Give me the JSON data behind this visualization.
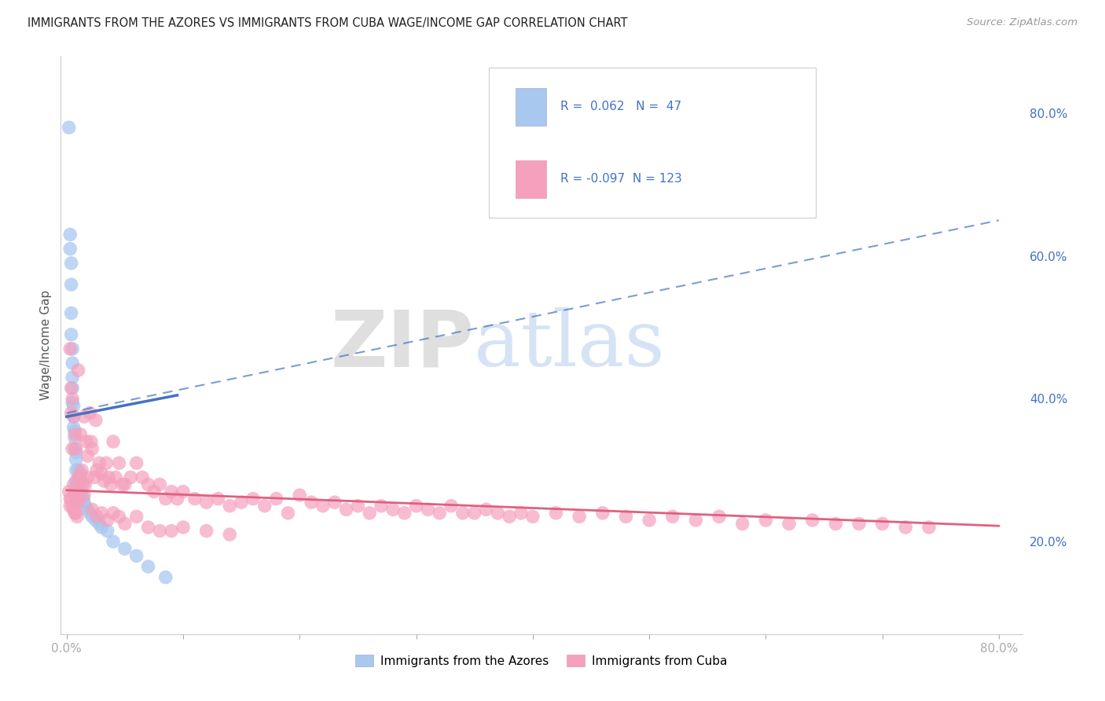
{
  "title": "IMMIGRANTS FROM THE AZORES VS IMMIGRANTS FROM CUBA WAGE/INCOME GAP CORRELATION CHART",
  "source": "Source: ZipAtlas.com",
  "ylabel": "Wage/Income Gap",
  "xlim": [
    -0.005,
    0.82
  ],
  "ylim": [
    0.07,
    0.88
  ],
  "azores_R": 0.062,
  "azores_N": 47,
  "cuba_R": -0.097,
  "cuba_N": 123,
  "azores_color": "#a8c8f0",
  "cuba_color": "#f5a0bc",
  "azores_line_color": "#4472c4",
  "cuba_line_color": "#e06080",
  "background_color": "#ffffff",
  "grid_color": "#d0d0d0",
  "legend_label_azores": "Immigrants from the Azores",
  "legend_label_cuba": "Immigrants from Cuba",
  "right_yticks": [
    0.2,
    0.4,
    0.6,
    0.8
  ],
  "right_yticklabels": [
    "20.0%",
    "40.0%",
    "60.0%",
    "80.0%"
  ],
  "xtick_positions": [
    0.0,
    0.1,
    0.2,
    0.3,
    0.4,
    0.5,
    0.6,
    0.7,
    0.8
  ],
  "xtick_labels": [
    "0.0%",
    "",
    "",
    "",
    "",
    "",
    "",
    "",
    "80.0%"
  ],
  "azores_x": [
    0.002,
    0.003,
    0.003,
    0.004,
    0.004,
    0.004,
    0.004,
    0.005,
    0.005,
    0.005,
    0.005,
    0.005,
    0.006,
    0.006,
    0.006,
    0.007,
    0.007,
    0.007,
    0.008,
    0.008,
    0.008,
    0.008,
    0.009,
    0.009,
    0.009,
    0.01,
    0.01,
    0.011,
    0.011,
    0.012,
    0.012,
    0.013,
    0.014,
    0.015,
    0.016,
    0.018,
    0.02,
    0.022,
    0.025,
    0.028,
    0.03,
    0.035,
    0.04,
    0.05,
    0.06,
    0.07,
    0.085
  ],
  "azores_y": [
    0.78,
    0.63,
    0.61,
    0.59,
    0.56,
    0.52,
    0.49,
    0.47,
    0.45,
    0.43,
    0.415,
    0.395,
    0.39,
    0.375,
    0.36,
    0.355,
    0.345,
    0.33,
    0.325,
    0.315,
    0.3,
    0.285,
    0.28,
    0.265,
    0.255,
    0.3,
    0.285,
    0.27,
    0.26,
    0.295,
    0.28,
    0.265,
    0.26,
    0.255,
    0.25,
    0.245,
    0.24,
    0.235,
    0.23,
    0.225,
    0.22,
    0.215,
    0.2,
    0.19,
    0.18,
    0.165,
    0.15
  ],
  "cuba_x": [
    0.002,
    0.003,
    0.003,
    0.004,
    0.004,
    0.005,
    0.005,
    0.006,
    0.006,
    0.007,
    0.007,
    0.008,
    0.008,
    0.009,
    0.009,
    0.01,
    0.01,
    0.011,
    0.012,
    0.013,
    0.014,
    0.015,
    0.016,
    0.017,
    0.018,
    0.02,
    0.021,
    0.022,
    0.024,
    0.025,
    0.026,
    0.028,
    0.03,
    0.032,
    0.034,
    0.036,
    0.038,
    0.04,
    0.042,
    0.045,
    0.048,
    0.05,
    0.055,
    0.06,
    0.065,
    0.07,
    0.075,
    0.08,
    0.085,
    0.09,
    0.095,
    0.1,
    0.11,
    0.12,
    0.13,
    0.14,
    0.15,
    0.16,
    0.17,
    0.18,
    0.19,
    0.2,
    0.21,
    0.22,
    0.23,
    0.24,
    0.25,
    0.26,
    0.27,
    0.28,
    0.29,
    0.3,
    0.31,
    0.32,
    0.33,
    0.34,
    0.35,
    0.36,
    0.37,
    0.38,
    0.39,
    0.4,
    0.42,
    0.44,
    0.46,
    0.48,
    0.5,
    0.52,
    0.54,
    0.56,
    0.58,
    0.6,
    0.62,
    0.64,
    0.66,
    0.68,
    0.7,
    0.72,
    0.74,
    0.003,
    0.004,
    0.005,
    0.006,
    0.007,
    0.008,
    0.01,
    0.012,
    0.015,
    0.018,
    0.022,
    0.026,
    0.03,
    0.035,
    0.04,
    0.045,
    0.05,
    0.06,
    0.07,
    0.08,
    0.09,
    0.1,
    0.12,
    0.14
  ],
  "cuba_y": [
    0.27,
    0.26,
    0.25,
    0.38,
    0.26,
    0.33,
    0.25,
    0.28,
    0.245,
    0.27,
    0.24,
    0.265,
    0.24,
    0.26,
    0.235,
    0.44,
    0.255,
    0.29,
    0.35,
    0.3,
    0.28,
    0.375,
    0.28,
    0.34,
    0.32,
    0.38,
    0.34,
    0.33,
    0.29,
    0.37,
    0.3,
    0.31,
    0.295,
    0.285,
    0.31,
    0.29,
    0.28,
    0.34,
    0.29,
    0.31,
    0.28,
    0.28,
    0.29,
    0.31,
    0.29,
    0.28,
    0.27,
    0.28,
    0.26,
    0.27,
    0.26,
    0.27,
    0.26,
    0.255,
    0.26,
    0.25,
    0.255,
    0.26,
    0.25,
    0.26,
    0.24,
    0.265,
    0.255,
    0.25,
    0.255,
    0.245,
    0.25,
    0.24,
    0.25,
    0.245,
    0.24,
    0.25,
    0.245,
    0.24,
    0.25,
    0.24,
    0.24,
    0.245,
    0.24,
    0.235,
    0.24,
    0.235,
    0.24,
    0.235,
    0.24,
    0.235,
    0.23,
    0.235,
    0.23,
    0.235,
    0.225,
    0.23,
    0.225,
    0.23,
    0.225,
    0.225,
    0.225,
    0.22,
    0.22,
    0.47,
    0.415,
    0.4,
    0.375,
    0.35,
    0.33,
    0.29,
    0.29,
    0.265,
    0.29,
    0.245,
    0.235,
    0.24,
    0.23,
    0.24,
    0.235,
    0.225,
    0.235,
    0.22,
    0.215,
    0.215,
    0.22,
    0.215,
    0.21
  ],
  "dashed_line_x": [
    0.0,
    0.8
  ],
  "dashed_line_y": [
    0.38,
    0.65
  ],
  "solid_az_line_x": [
    0.0,
    0.095
  ],
  "solid_az_line_y": [
    0.375,
    0.405
  ],
  "solid_cu_line_x": [
    0.0,
    0.8
  ],
  "solid_cu_line_y": [
    0.272,
    0.222
  ]
}
